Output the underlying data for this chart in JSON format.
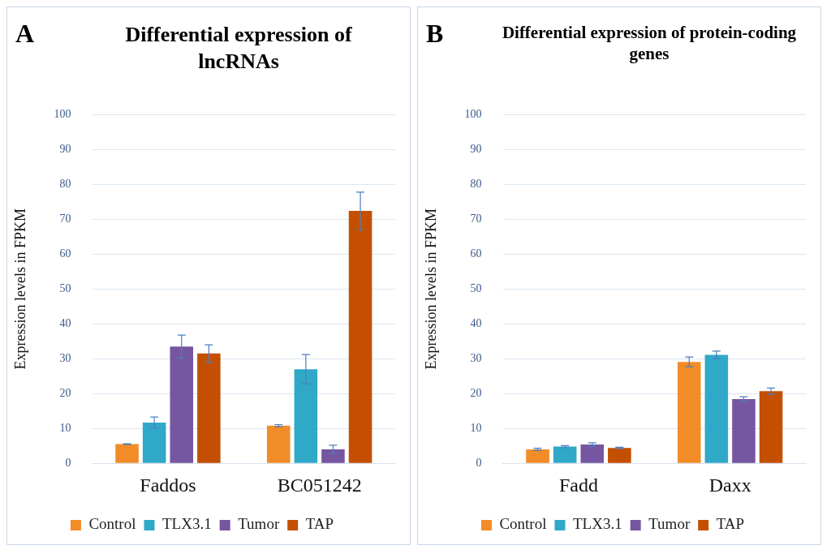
{
  "chart_data": [
    {
      "type": "bar",
      "title": "Differential  expression of lncRNAs",
      "annotations": [
        "A"
      ],
      "ylabel": "Expression levels in FPKM",
      "categories": [
        "Faddos",
        "BC051242"
      ],
      "series": [
        {
          "name": "Control",
          "color": "#f28c28",
          "values": [
            5.5,
            10.8
          ],
          "errors": [
            0.1,
            0.3
          ]
        },
        {
          "name": "TLX3.1",
          "color": "#30a8c8",
          "values": [
            11.7,
            27
          ],
          "errors": [
            1.6,
            4.2
          ]
        },
        {
          "name": "Tumor",
          "color": "#7656a0",
          "values": [
            33.5,
            4
          ],
          "errors": [
            3.3,
            1.2
          ]
        },
        {
          "name": "TAP",
          "color": "#c44f00",
          "values": [
            31.5,
            72.4
          ],
          "errors": [
            2.5,
            5.4
          ]
        }
      ],
      "ylim": [
        0,
        100
      ],
      "yticks": [
        0,
        10,
        20,
        30,
        40,
        50,
        60,
        70,
        80,
        90,
        100
      ],
      "grid": "y",
      "legend": "bottom"
    },
    {
      "type": "bar",
      "title": "Differential  expression of protein-coding genes",
      "annotations": [
        "B"
      ],
      "ylabel": "Expression levels in FPKM",
      "categories": [
        "Fadd",
        "Daxx"
      ],
      "series": [
        {
          "name": "Control",
          "color": "#f28c28",
          "values": [
            4,
            29.1
          ],
          "errors": [
            0.3,
            1.4
          ]
        },
        {
          "name": "TLX3.1",
          "color": "#30a8c8",
          "values": [
            4.8,
            31.1
          ],
          "errors": [
            0.3,
            1.1
          ]
        },
        {
          "name": "Tumor",
          "color": "#7656a0",
          "values": [
            5.4,
            18.4
          ],
          "errors": [
            0.5,
            0.7
          ]
        },
        {
          "name": "TAP",
          "color": "#c44f00",
          "values": [
            4.4,
            20.7
          ],
          "errors": [
            0.2,
            0.9
          ]
        }
      ],
      "ylim": [
        0,
        100
      ],
      "yticks": [
        0,
        10,
        20,
        30,
        40,
        50,
        60,
        70,
        80,
        90,
        100
      ],
      "grid": "y",
      "legend": "bottom"
    }
  ]
}
